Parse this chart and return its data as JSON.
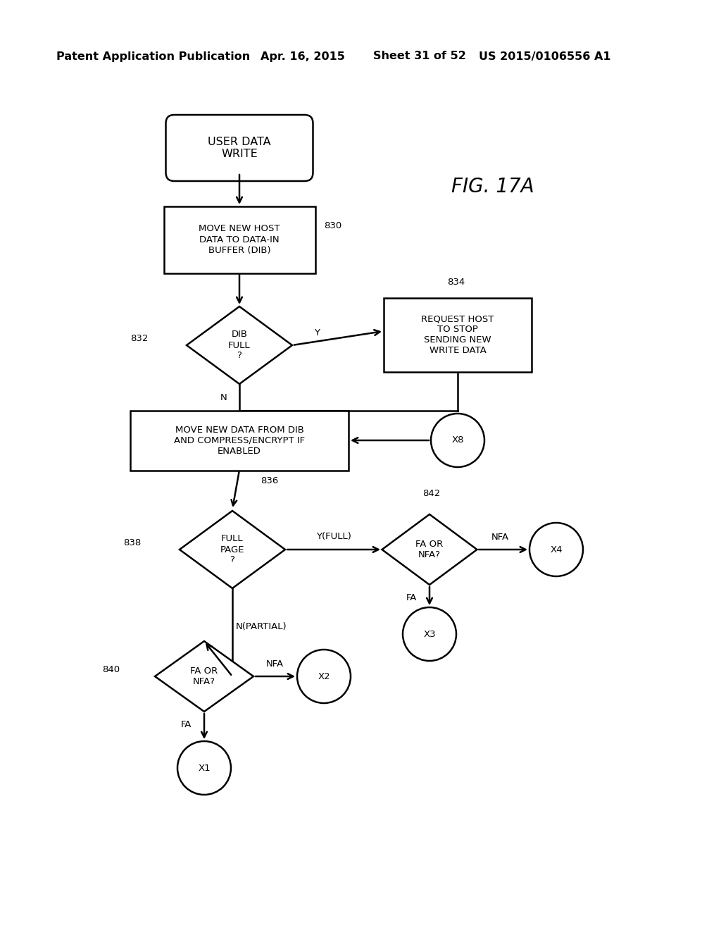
{
  "bg_color": "#ffffff",
  "header_text": "Patent Application Publication",
  "header_date": "Apr. 16, 2015",
  "header_sheet": "Sheet 31 of 52",
  "header_patent": "US 2015/0106556 A1",
  "fig_label": "FIG. 17A",
  "lw": 1.8,
  "font_size": 9.5,
  "header_font_size": 11.5
}
